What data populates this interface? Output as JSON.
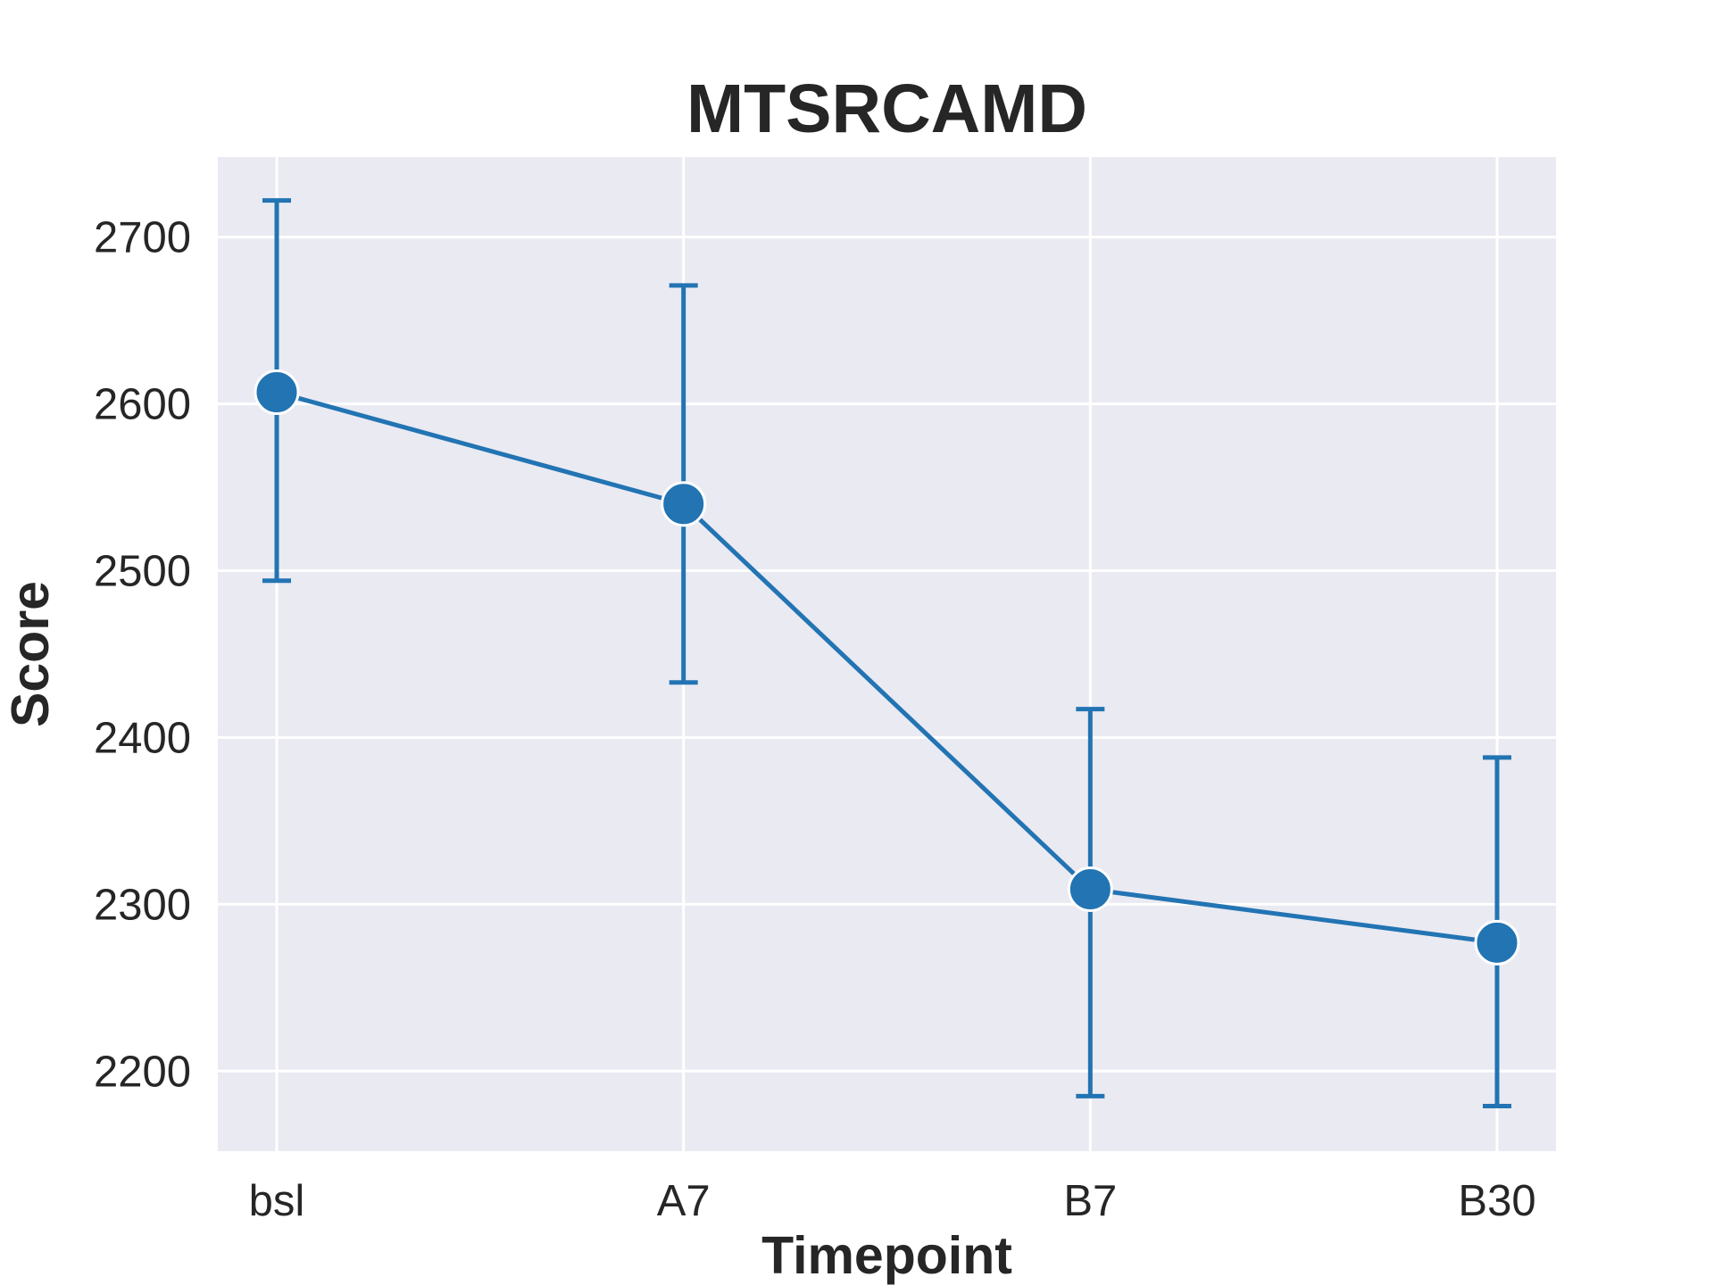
{
  "chart_data": {
    "type": "line",
    "title": "MTSRCAMD",
    "xlabel": "Timepoint",
    "ylabel": "Score",
    "categories": [
      "bsl",
      "A7",
      "B7",
      "B30"
    ],
    "values": [
      2607,
      2540,
      2309,
      2277
    ],
    "error_low": [
      2494,
      2433,
      2185,
      2179
    ],
    "error_high": [
      2722,
      2671,
      2417,
      2388
    ],
    "ylim": [
      2152,
      2748
    ],
    "yticks": [
      2200,
      2300,
      2400,
      2500,
      2600,
      2700
    ],
    "grid": true,
    "colors": {
      "series": "#2274b3",
      "plot_background": "#eaeaf2",
      "grid": "#ffffff",
      "text": "#262626"
    }
  }
}
